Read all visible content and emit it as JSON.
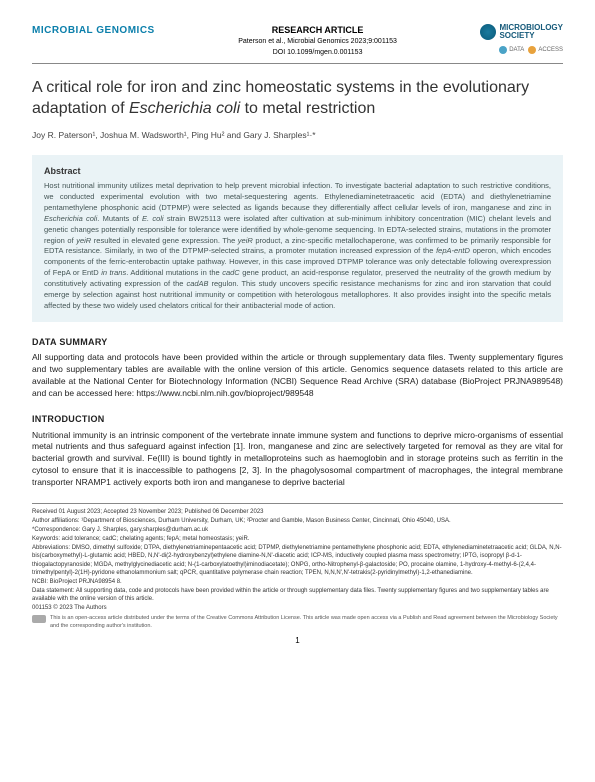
{
  "header": {
    "journal": "MICROBIAL GENOMICS",
    "article_type": "RESEARCH ARTICLE",
    "citation": "Paterson et al., Microbial Genomics 2023;9:001153",
    "doi": "DOI 10.1099/mgen.0.001153",
    "logo_text_line1": "MICROBIOLOGY",
    "logo_text_line2": "SOCIETY",
    "badge_data": "DATA",
    "badge_access": "ACCESS",
    "journal_color": "#0b7fab",
    "logo_color": "#165a7a",
    "badge_data_color": "#4aa3c7",
    "badge_access_color": "#e8a23d"
  },
  "title": "A critical role for iron and zinc homeostatic systems in the evolutionary adaptation of Escherichia coli to metal restriction",
  "authors": "Joy R. Paterson¹, Joshua M. Wadsworth¹, Ping Hu² and Gary J. Sharples¹·*",
  "abstract": {
    "heading": "Abstract",
    "text": "Host nutritional immunity utilizes metal deprivation to help prevent microbial infection. To investigate bacterial adaptation to such restrictive conditions, we conducted experimental evolution with two metal-sequestering agents. Ethylenediaminetetraacetic acid (EDTA) and diethylenetriamine pentamethylene phosphonic acid (DTPMP) were selected as ligands because they differentially affect cellular levels of iron, manganese and zinc in Escherichia coli. Mutants of E. coli strain BW25113 were isolated after cultivation at sub-minimum inhibitory concentration (MIC) chelant levels and genetic changes potentially responsible for tolerance were identified by whole-genome sequencing. In EDTA-selected strains, mutations in the promoter region of yeiR resulted in elevated gene expression. The yeiR product, a zinc-specific metallochaperone, was confirmed to be primarily responsible for EDTA resistance. Similarly, in two of the DTPMP-selected strains, a promoter mutation increased expression of the fepA-entD operon, which encodes components of the ferric-enterobactin uptake pathway. However, in this case improved DTPMP tolerance was only detectable following overexpression of FepA or EntD in trans. Additional mutations in the cadC gene product, an acid-response regulator, preserved the neutrality of the growth medium by constitutively activating expression of the cadAB regulon. This study uncovers specific resistance mechanisms for zinc and iron starvation that could emerge by selection against host nutritional immunity or competition with heterologous metallophores. It also provides insight into the specific metals affected by these two widely used chelators critical for their antibacterial mode of action."
  },
  "data_summary": {
    "heading": "DATA SUMMARY",
    "text": "All supporting data and protocols have been provided within the article or through supplementary data files. Twenty supplementary figures and two supplementary tables are available with the online version of this article. Genomics sequence datasets related to this article are available at the National Center for Biotechnology Information (NCBI) Sequence Read Archive (SRA) database (BioProject PRJNA989548) and can be accessed here: https://www.ncbi.nlm.nih.gov/bioproject/989548"
  },
  "introduction": {
    "heading": "INTRODUCTION",
    "text": "Nutritional immunity is an intrinsic component of the vertebrate innate immune system and functions to deprive micro-organisms of essential metal nutrients and thus safeguard against infection [1]. Iron, manganese and zinc are selectively targeted for removal as they are vital for bacterial growth and survival. Fe(III) is bound tightly in metalloproteins such as haemoglobin and in storage proteins such as ferritin in the cytosol to ensure that it is inaccessible to pathogens [2, 3]. In the phagolysosomal compartment of macrophages, the integral membrane transporter NRAMP1 actively exports both iron and manganese to deprive bacterial"
  },
  "footer": {
    "received": "Received 01 August 2023; Accepted 23 November 2023; Published 06 December 2023",
    "affiliations": "Author affiliations: ¹Department of Biosciences, Durham University, Durham, UK; ²Procter and Gamble, Mason Business Center, Cincinnati, Ohio 45040, USA.",
    "correspondence": "*Correspondence: Gary J. Sharples, gary.sharples@durham.ac.uk",
    "keywords": "Keywords: acid tolerance; cadC; chelating agents; fepA; metal homeostasis; yeiR.",
    "abbreviations": "Abbreviations: DMSO, dimethyl sulfoxide; DTPA, diethylenetriaminepentaacetic acid; DTPMP, diethylenetriamine pentamethylene phosphonic acid; EDTA, ethylenediaminetetraacetic acid; GLDA, N,N-bis(carboxymethyl)-L-glutamic acid; HBED, N,N'-di(2-hydroxybenzyl)ethylene diamine-N,N'-diacetic acid; ICP-MS, inductively coupled plasma mass spectrometry; IPTG, isopropyl β-d-1-thiogalactopyranoside; MGDA, methylglycinediacetic acid; N-(1-carboxylatoethyl)iminodiacetate); ONPG, ortho-Nitrophenyl-β-galactoside; PO, procaine olamine, 1-hydroxy-4-methyl-6-(2,4,4-trimethylpentyl)-2(1H)-pyridone ethanolammonium salt; qPCR, quantitative polymerase chain reaction; TPEN, N,N,N',N'-tetrakis(2-pyridinylmethyl)-1,2-ethanediamine.",
    "bioproject": "NCBI: BioProject PRJNA98954 8.",
    "data_statement": "Data statement: All supporting data, code and protocols have been provided within the article or through supplementary data files. Twenty supplementary figures and two supplementary tables are available with the online version of this article.",
    "code": "001153 © 2023 The Authors",
    "cc_text": "This is an open-access article distributed under the terms of the Creative Commons Attribution License. This article was made open access via a Publish and Read agreement between the Microbiology Society and the corresponding author's institution."
  },
  "page_number": "1"
}
